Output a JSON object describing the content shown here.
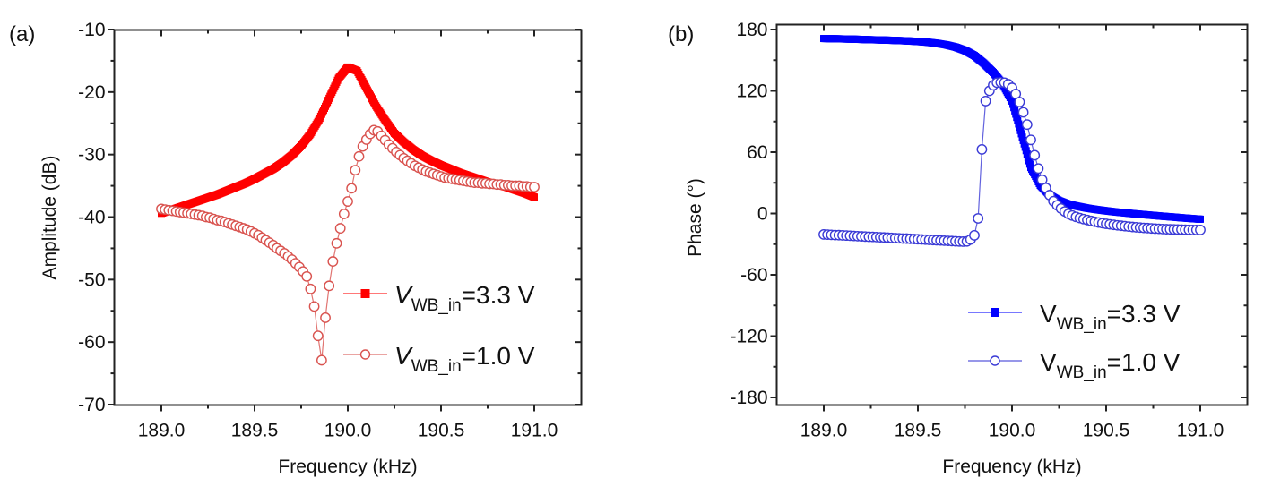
{
  "chart_data": [
    {
      "panel": "(a)",
      "type": "line",
      "title": "",
      "xlabel": "Frequency (kHz)",
      "ylabel": "Amplitude (dB)",
      "xlim": [
        188.75,
        191.25
      ],
      "ylim": [
        -70,
        -10
      ],
      "xticks": [
        "189.0",
        "189.5",
        "190.0",
        "190.5",
        "191.0"
      ],
      "xtick_values": [
        189.0,
        189.5,
        190.0,
        190.5,
        191.0
      ],
      "yticks": [
        "-70",
        "-60",
        "-50",
        "-40",
        "-30",
        "-20",
        "-10"
      ],
      "ytick_values": [
        -70,
        -60,
        -50,
        -40,
        -30,
        -20,
        -10
      ],
      "grid": false,
      "legend_position": "lower-right",
      "series": [
        {
          "name": "V_WB_in=3.3 V",
          "legend_main": "V",
          "legend_sub": "WB_in",
          "legend_rest": "=3.3 V",
          "marker": "filled-square",
          "color": "#ff0000",
          "x": [
            189.0,
            189.05,
            189.1,
            189.15,
            189.2,
            189.25,
            189.3,
            189.35,
            189.4,
            189.45,
            189.5,
            189.55,
            189.6,
            189.65,
            189.7,
            189.75,
            189.8,
            189.85,
            189.9,
            189.95,
            190.0,
            190.05,
            190.1,
            190.15,
            190.2,
            190.25,
            190.3,
            190.35,
            190.4,
            190.45,
            190.5,
            190.55,
            190.6,
            190.65,
            190.7,
            190.75,
            190.8,
            190.85,
            190.9,
            190.95,
            191.0
          ],
          "y": [
            -39.4,
            -38.9,
            -38.4,
            -37.9,
            -37.4,
            -36.9,
            -36.4,
            -35.8,
            -35.2,
            -34.6,
            -33.9,
            -33.1,
            -32.3,
            -31.3,
            -30.1,
            -28.6,
            -26.7,
            -24.2,
            -21.0,
            -17.8,
            -16.0,
            -16.6,
            -19.4,
            -22.2,
            -24.5,
            -26.6,
            -28.0,
            -29.2,
            -30.2,
            -31.0,
            -31.7,
            -32.3,
            -32.9,
            -33.4,
            -33.9,
            -34.4,
            -34.8,
            -35.2,
            -35.7,
            -36.2,
            -36.8
          ]
        },
        {
          "name": "V_WB_in=1.0 V",
          "legend_main": "V",
          "legend_sub": "WB_in",
          "legend_rest": "=1.0 V",
          "marker": "open-circle",
          "color": "#d9534f",
          "x": [
            189.0,
            189.02,
            189.04,
            189.06,
            189.08,
            189.1,
            189.12,
            189.14,
            189.16,
            189.18,
            189.2,
            189.22,
            189.24,
            189.26,
            189.28,
            189.3,
            189.32,
            189.34,
            189.36,
            189.38,
            189.4,
            189.42,
            189.44,
            189.46,
            189.48,
            189.5,
            189.52,
            189.54,
            189.56,
            189.58,
            189.6,
            189.62,
            189.64,
            189.66,
            189.68,
            189.7,
            189.72,
            189.74,
            189.76,
            189.78,
            189.8,
            189.82,
            189.84,
            189.86,
            189.88,
            189.9,
            189.92,
            189.94,
            189.96,
            189.98,
            190.0,
            190.02,
            190.04,
            190.06,
            190.08,
            190.1,
            190.12,
            190.14,
            190.16,
            190.18,
            190.2,
            190.22,
            190.24,
            190.26,
            190.28,
            190.3,
            190.32,
            190.34,
            190.36,
            190.38,
            190.4,
            190.42,
            190.44,
            190.46,
            190.48,
            190.5,
            190.52,
            190.54,
            190.56,
            190.58,
            190.6,
            190.62,
            190.64,
            190.66,
            190.68,
            190.7,
            190.72,
            190.74,
            190.76,
            190.78,
            190.8,
            190.82,
            190.84,
            190.86,
            190.88,
            190.9,
            190.92,
            190.94,
            190.96,
            190.98,
            191.0
          ],
          "y": [
            -38.7,
            -38.8,
            -38.9,
            -39.0,
            -39.1,
            -39.2,
            -39.3,
            -39.4,
            -39.5,
            -39.6,
            -39.7,
            -39.8,
            -40.0,
            -40.1,
            -40.3,
            -40.5,
            -40.6,
            -40.8,
            -41.0,
            -41.2,
            -41.4,
            -41.6,
            -41.8,
            -42.0,
            -42.3,
            -42.6,
            -42.9,
            -43.3,
            -43.7,
            -44.1,
            -44.5,
            -45.0,
            -45.4,
            -45.8,
            -46.3,
            -46.8,
            -47.4,
            -48.0,
            -48.7,
            -49.5,
            -51.5,
            -54.3,
            -59.0,
            -62.9,
            -56.1,
            -51.0,
            -47.1,
            -44.2,
            -41.8,
            -39.5,
            -37.5,
            -35.4,
            -32.5,
            -30.3,
            -28.7,
            -27.6,
            -26.7,
            -26.1,
            -26.3,
            -27.0,
            -27.7,
            -28.4,
            -29.0,
            -29.6,
            -30.1,
            -30.6,
            -31.0,
            -31.4,
            -31.8,
            -32.1,
            -32.4,
            -32.7,
            -32.9,
            -33.1,
            -33.3,
            -33.5,
            -33.7,
            -33.8,
            -33.9,
            -34.0,
            -34.1,
            -34.2,
            -34.3,
            -34.4,
            -34.5,
            -34.5,
            -34.6,
            -34.6,
            -34.7,
            -34.7,
            -34.8,
            -34.8,
            -34.9,
            -34.9,
            -35.0,
            -35.0,
            -35.0,
            -35.1,
            -35.1,
            -35.2,
            -35.2
          ]
        }
      ]
    },
    {
      "panel": "(b)",
      "type": "line",
      "title": "",
      "xlabel": "Frequency (kHz)",
      "ylabel": "Phase (°)",
      "xlim": [
        188.75,
        191.25
      ],
      "ylim": [
        -187,
        187
      ],
      "xticks": [
        "189.0",
        "189.5",
        "190.0",
        "190.5",
        "191.0"
      ],
      "xtick_values": [
        189.0,
        189.5,
        190.0,
        190.5,
        191.0
      ],
      "yticks": [
        "-180",
        "-120",
        "-60",
        "0",
        "60",
        "120",
        "180"
      ],
      "ytick_values": [
        -180,
        -120,
        -60,
        0,
        60,
        120,
        180
      ],
      "grid": false,
      "legend_position": "lower-right",
      "series": [
        {
          "name": "V_WB_in=3.3 V",
          "legend_main": "V",
          "legend_sub": "WB_in",
          "legend_rest": "=3.3 V",
          "marker": "filled-square",
          "color": "#0000ff",
          "x": [
            189.0,
            189.05,
            189.1,
            189.15,
            189.2,
            189.25,
            189.3,
            189.35,
            189.4,
            189.45,
            189.5,
            189.55,
            189.6,
            189.65,
            189.7,
            189.75,
            189.8,
            189.85,
            189.9,
            189.95,
            190.0,
            190.05,
            190.1,
            190.15,
            190.2,
            190.25,
            190.3,
            190.35,
            190.4,
            190.45,
            190.5,
            190.55,
            190.6,
            190.65,
            190.7,
            190.75,
            190.8,
            190.85,
            190.9,
            190.95,
            191.0
          ],
          "y": [
            171.2,
            171.0,
            170.8,
            170.6,
            170.3,
            170.0,
            169.8,
            169.5,
            169.2,
            168.8,
            168.3,
            167.6,
            166.5,
            165.0,
            162.8,
            159.5,
            154.5,
            147.0,
            138.0,
            127.0,
            110.0,
            78.0,
            45.0,
            27.6,
            18.0,
            12.5,
            9.0,
            7.0,
            5.2,
            3.8,
            2.6,
            1.5,
            0.6,
            -0.3,
            -1.1,
            -1.9,
            -2.7,
            -3.4,
            -4.2,
            -4.9,
            -5.6
          ]
        },
        {
          "name": "V_WB_in=1.0 V",
          "legend_main": "V",
          "legend_sub": "WB_in",
          "legend_rest": "=1.0 V",
          "marker": "open-circle",
          "color": "#3b3bd6",
          "x": [
            189.0,
            189.02,
            189.04,
            189.06,
            189.08,
            189.1,
            189.12,
            189.14,
            189.16,
            189.18,
            189.2,
            189.22,
            189.24,
            189.26,
            189.28,
            189.3,
            189.32,
            189.34,
            189.36,
            189.38,
            189.4,
            189.42,
            189.44,
            189.46,
            189.48,
            189.5,
            189.52,
            189.54,
            189.56,
            189.58,
            189.6,
            189.62,
            189.64,
            189.66,
            189.68,
            189.7,
            189.72,
            189.74,
            189.76,
            189.78,
            189.8,
            189.82,
            189.84,
            189.86,
            189.88,
            189.9,
            189.92,
            189.94,
            189.96,
            189.98,
            190.0,
            190.02,
            190.04,
            190.06,
            190.08,
            190.1,
            190.12,
            190.14,
            190.16,
            190.18,
            190.2,
            190.22,
            190.24,
            190.26,
            190.28,
            190.3,
            190.32,
            190.34,
            190.36,
            190.38,
            190.4,
            190.42,
            190.44,
            190.46,
            190.48,
            190.5,
            190.52,
            190.54,
            190.56,
            190.58,
            190.6,
            190.62,
            190.64,
            190.66,
            190.68,
            190.7,
            190.72,
            190.74,
            190.76,
            190.78,
            190.8,
            190.82,
            190.84,
            190.86,
            190.88,
            190.9,
            190.92,
            190.94,
            190.96,
            190.98,
            191.0
          ],
          "y": [
            -20.5,
            -20.7,
            -20.9,
            -21.1,
            -21.2,
            -21.4,
            -21.6,
            -21.8,
            -22.0,
            -22.2,
            -22.4,
            -22.6,
            -22.8,
            -22.9,
            -23.1,
            -23.3,
            -23.5,
            -23.7,
            -23.9,
            -24.1,
            -24.3,
            -24.5,
            -24.6,
            -24.8,
            -25.0,
            -25.2,
            -25.4,
            -25.6,
            -25.8,
            -26.0,
            -26.2,
            -26.4,
            -26.6,
            -26.8,
            -27.0,
            -27.2,
            -27.4,
            -27.5,
            -27.3,
            -25.5,
            -21.4,
            -4.8,
            62.7,
            110.0,
            120.0,
            125.5,
            128.0,
            128.3,
            128.0,
            126.5,
            123.0,
            117.0,
            109.0,
            99.0,
            87.0,
            72.0,
            57.0,
            44.0,
            33.0,
            25.0,
            18.0,
            12.0,
            8.0,
            4.9,
            2.0,
            -0.4,
            -2.0,
            -3.3,
            -4.5,
            -5.5,
            -6.4,
            -7.3,
            -8.1,
            -8.8,
            -9.5,
            -10.1,
            -10.6,
            -11.1,
            -11.6,
            -12.0,
            -12.4,
            -12.8,
            -13.2,
            -13.5,
            -13.8,
            -14.1,
            -14.3,
            -14.6,
            -14.8,
            -15.0,
            -15.2,
            -15.4,
            -15.5,
            -15.6,
            -15.7,
            -15.8,
            -15.9,
            -16.0,
            -16.1,
            -16.1,
            -16.1
          ]
        }
      ]
    }
  ]
}
